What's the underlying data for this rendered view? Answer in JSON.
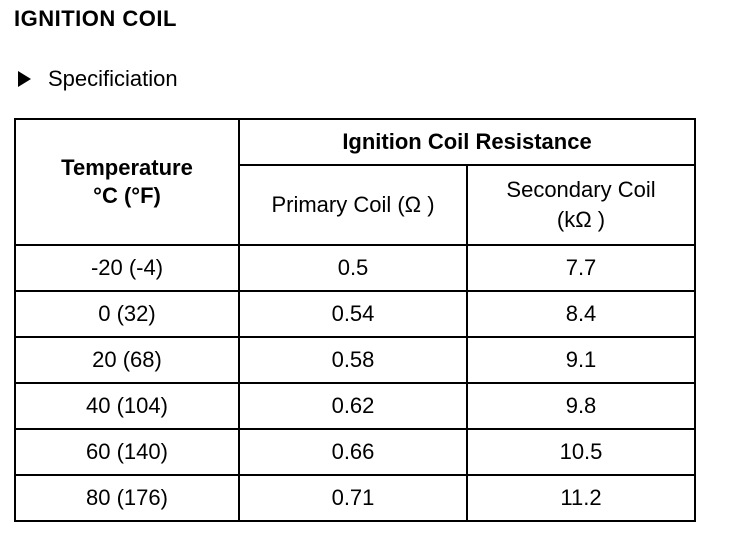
{
  "title": "IGNITION COIL",
  "section": {
    "icon": "triangle-right-icon",
    "heading": "Specificiation"
  },
  "table": {
    "temperature_header_line1": "Temperature",
    "temperature_header_line2": "°C (°F)",
    "resistance_header": "Ignition Coil Resistance",
    "primary_header": "Primary Coil (Ω )",
    "secondary_header_line1": "Secondary Coil",
    "secondary_header_line2": "(kΩ )",
    "rows": [
      {
        "temperature": "-20 (-4)",
        "primary": "0.5",
        "secondary": "7.7"
      },
      {
        "temperature": "0 (32)",
        "primary": "0.54",
        "secondary": "8.4"
      },
      {
        "temperature": "20 (68)",
        "primary": "0.58",
        "secondary": "9.1"
      },
      {
        "temperature": "40 (104)",
        "primary": "0.62",
        "secondary": "9.8"
      },
      {
        "temperature": "60 (140)",
        "primary": "0.66",
        "secondary": "10.5"
      },
      {
        "temperature": "80 (176)",
        "primary": "0.71",
        "secondary": "11.2"
      }
    ]
  }
}
